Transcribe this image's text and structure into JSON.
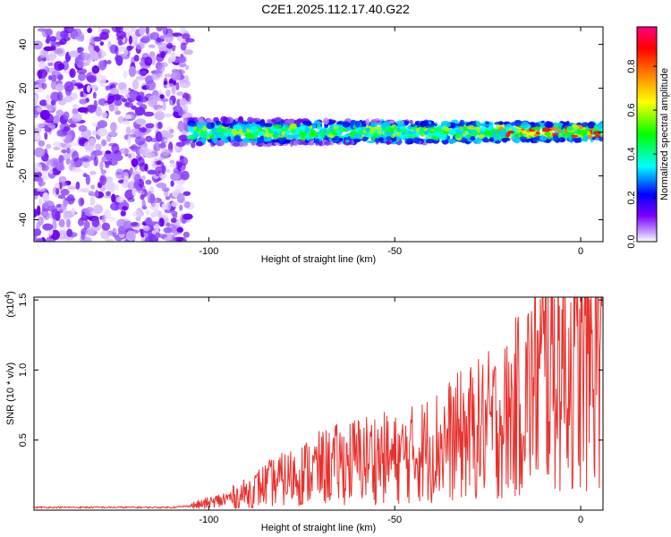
{
  "title": "C2E1.2025.112.17.40.G22",
  "chart_data": [
    {
      "type": "heatmap",
      "xlabel": "Height of straight line (km)",
      "ylabel": "Frequency (Hz)",
      "xlim": [
        -147,
        6
      ],
      "ylim": [
        -50,
        48
      ],
      "xticks": [
        -100,
        -50,
        0
      ],
      "yticks": [
        -40,
        -20,
        0,
        20,
        40
      ],
      "colorbar": {
        "label": "Normalized spectral amplitude",
        "range": [
          0.0,
          0.98
        ],
        "ticks": [
          0.0,
          0.2,
          0.4,
          0.6,
          0.8
        ],
        "colors": [
          "#ffffff",
          "#c9a6ff",
          "#7b00ff",
          "#0000ff",
          "#00ffff",
          "#00ff00",
          "#ffff00",
          "#ff7f00",
          "#ff0000",
          "#ff0080"
        ]
      },
      "features": [
        {
          "region": "noise",
          "x_range": [
            -147,
            -105
          ],
          "y_range": [
            -50,
            48
          ],
          "amplitude": 0.1
        },
        {
          "region": "signal_band",
          "x_range": [
            -105,
            6
          ],
          "center_frequency": 0,
          "bandwidth": 12,
          "amplitude_range": [
            0.2,
            0.95
          ]
        }
      ]
    },
    {
      "type": "line",
      "xlabel": "Height of straight line (km)",
      "ylabel": "SNR (10 * v/v)",
      "y_scale_label": "(x10",
      "y_scale_exp": "4",
      "y_scale_close": ")",
      "xlim": [
        -147,
        6
      ],
      "ylim": [
        0,
        1.52
      ],
      "xticks": [
        -100,
        -50,
        0
      ],
      "yticks": [
        0.5,
        1.0,
        1.5
      ],
      "series": [
        {
          "color": "#e8312d",
          "x": [
            -147,
            -130,
            -110,
            -105,
            -100,
            -95,
            -90,
            -85,
            -80,
            -75,
            -70,
            -65,
            -60,
            -55,
            -50,
            -45,
            -40,
            -35,
            -30,
            -25,
            -20,
            -15,
            -10,
            -5,
            0,
            5,
            6
          ],
          "y": [
            0.02,
            0.02,
            0.02,
            0.03,
            0.05,
            0.08,
            0.12,
            0.18,
            0.22,
            0.26,
            0.3,
            0.33,
            0.36,
            0.38,
            0.36,
            0.4,
            0.45,
            0.5,
            0.55,
            0.6,
            0.65,
            0.8,
            1.0,
            1.1,
            0.95,
            1.2,
            1.15
          ]
        }
      ]
    }
  ]
}
